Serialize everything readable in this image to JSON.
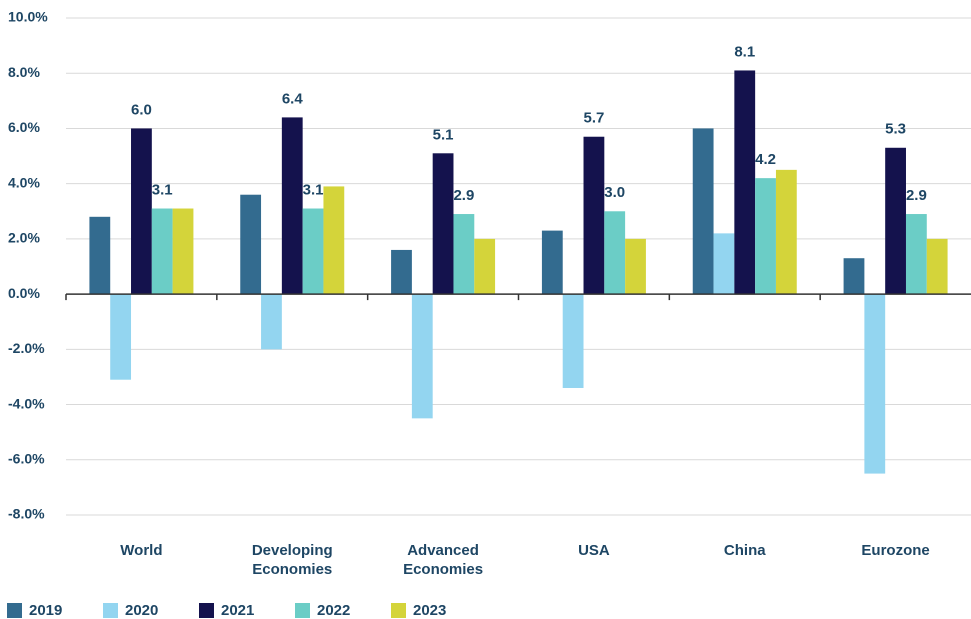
{
  "chart_data": {
    "type": "bar",
    "categories": [
      "World",
      "Developing Economies",
      "Advanced Economies",
      "USA",
      "China",
      "Eurozone"
    ],
    "series": [
      {
        "name": "2019",
        "color": "#336b8f",
        "values": [
          2.8,
          3.6,
          1.6,
          2.3,
          6.0,
          1.3
        ]
      },
      {
        "name": "2020",
        "color": "#93d5f0",
        "values": [
          -3.1,
          -2.0,
          -4.5,
          -3.4,
          2.2,
          -6.5
        ]
      },
      {
        "name": "2021",
        "color": "#14124d",
        "values": [
          6.0,
          6.4,
          5.1,
          5.7,
          8.1,
          5.3
        ],
        "value_labels": [
          "6.0",
          "6.4",
          "5.1",
          "5.7",
          "8.1",
          "5.3"
        ]
      },
      {
        "name": "2022",
        "color": "#6bcdc6",
        "values": [
          3.1,
          3.1,
          2.9,
          3.0,
          4.2,
          2.9
        ],
        "value_labels": [
          "3.1",
          "3.1",
          "2.9",
          "3.0",
          "4.2",
          "2.9"
        ]
      },
      {
        "name": "2023",
        "color": "#d4d43a",
        "values": [
          3.1,
          3.9,
          2.0,
          2.0,
          4.5,
          2.0
        ]
      }
    ],
    "ylim": [
      -8,
      10
    ],
    "yticks": [
      {
        "value": -8,
        "label": "-8.0%"
      },
      {
        "value": -6,
        "label": "-6.0%"
      },
      {
        "value": -4,
        "label": "-4.0%"
      },
      {
        "value": -2,
        "label": "-2.0%"
      },
      {
        "value": 0,
        "label": "0.0%"
      },
      {
        "value": 2,
        "label": "2.0%"
      },
      {
        "value": 4,
        "label": "4.0%"
      },
      {
        "value": 6,
        "label": "6.0%"
      },
      {
        "value": 8,
        "label": "8.0%"
      },
      {
        "value": 10,
        "label": "10.0%"
      }
    ],
    "grid": true,
    "legend": "bottom"
  }
}
